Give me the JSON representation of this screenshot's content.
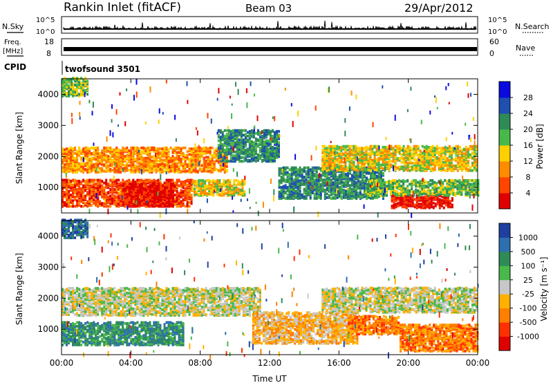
{
  "header": {
    "station": "Rankin Inlet (fitACF)",
    "beam": "Beam 03",
    "date": "29/Apr/2012"
  },
  "panels": {
    "nsky": {
      "left_label": "N.Sky",
      "right_label": "N.Search",
      "tick_top": "10^5",
      "tick_bottom": "10^0"
    },
    "freq": {
      "left_label_1": "Freq.",
      "left_label_2": "[MHz]",
      "left_tick_top": "18",
      "left_tick_bottom": "8",
      "right_label": "Nave",
      "right_tick_top": "60",
      "right_tick_bottom": "0"
    },
    "cpid": {
      "label": "CPID",
      "value": "twofsound 3501"
    }
  },
  "chart_data": [
    {
      "type": "heatmap",
      "name": "power",
      "ylabel": "Slant Range [km]",
      "xlabel": "",
      "x_ticks": [
        "00:00",
        "04:00",
        "08:00",
        "12:00",
        "16:00",
        "20:00",
        "00:00"
      ],
      "y_ticks": [
        1000,
        2000,
        3000,
        4000
      ],
      "ylim": [
        180,
        4500
      ],
      "xlim_hours": [
        0,
        24
      ],
      "colorbar": {
        "label": "Power [dB]",
        "ticks": [
          "4",
          "8",
          "12",
          "16",
          "20",
          "24",
          "28"
        ],
        "colors": [
          "#0a0ae0",
          "#1f4fb0",
          "#2e8b57",
          "#49b84a",
          "#ffd000",
          "#ff8c00",
          "#ff4500",
          "#e00000"
        ]
      },
      "bands": [
        {
          "t0": 0.0,
          "t1": 7.5,
          "r0": 350,
          "r1": 1200,
          "level": 6
        },
        {
          "t0": 0.0,
          "t1": 9.5,
          "r0": 1450,
          "r1": 2250,
          "level": 5
        },
        {
          "t0": 3.5,
          "t1": 6.5,
          "r0": 350,
          "r1": 1100,
          "level": 7
        },
        {
          "t0": 7.5,
          "t1": 10.5,
          "r0": 700,
          "r1": 1200,
          "level": 4
        },
        {
          "t0": 9.0,
          "t1": 12.5,
          "r0": 1800,
          "r1": 2800,
          "level": 2
        },
        {
          "t0": 12.5,
          "t1": 18.5,
          "r0": 600,
          "r1": 1600,
          "level": 2
        },
        {
          "t0": 15.0,
          "t1": 24.0,
          "r0": 1500,
          "r1": 2300,
          "level": 4
        },
        {
          "t0": 19.0,
          "t1": 22.5,
          "r0": 300,
          "r1": 700,
          "level": 7
        },
        {
          "t0": 17.5,
          "t1": 24.0,
          "r0": 700,
          "r1": 1200,
          "level": 3
        },
        {
          "t0": 0.0,
          "t1": 1.5,
          "r0": 3900,
          "r1": 4500,
          "level": 3
        }
      ]
    },
    {
      "type": "heatmap",
      "name": "velocity",
      "ylabel": "Slant Range [km]",
      "xlabel": "Time UT",
      "x_ticks": [
        "00:00",
        "04:00",
        "08:00",
        "12:00",
        "16:00",
        "20:00",
        "00:00"
      ],
      "y_ticks": [
        1000,
        2000,
        3000,
        4000
      ],
      "ylim": [
        180,
        4500
      ],
      "xlim_hours": [
        0,
        24
      ],
      "colorbar": {
        "label": "Velocity [m s⁻¹]",
        "ticks": [
          "1000",
          "500",
          "100",
          "25",
          "-25",
          "-100",
          "-500",
          "-1000"
        ],
        "colors": [
          "#1f3fa0",
          "#2e6fb0",
          "#2e8b57",
          "#49b84a",
          "#c8c8c8",
          "#ffb000",
          "#ff7f00",
          "#ff3000",
          "#e00000"
        ]
      },
      "bands": [
        {
          "t0": 0.0,
          "t1": 7.0,
          "r0": 450,
          "r1": 1200,
          "level": 2
        },
        {
          "t0": 0.0,
          "t1": 11.5,
          "r0": 1400,
          "r1": 2300,
          "level": 4
        },
        {
          "t0": 11.0,
          "t1": 17.0,
          "r0": 500,
          "r1": 1500,
          "level": 5
        },
        {
          "t0": 15.0,
          "t1": 24.0,
          "r0": 1500,
          "r1": 2300,
          "level": 4
        },
        {
          "t0": 16.5,
          "t1": 19.5,
          "r0": 800,
          "r1": 1400,
          "level": 6
        },
        {
          "t0": 19.5,
          "t1": 24.0,
          "r0": 250,
          "r1": 1100,
          "level": 6
        },
        {
          "t0": 0.0,
          "t1": 1.5,
          "r0": 3900,
          "r1": 4500,
          "level": 1
        }
      ]
    }
  ]
}
